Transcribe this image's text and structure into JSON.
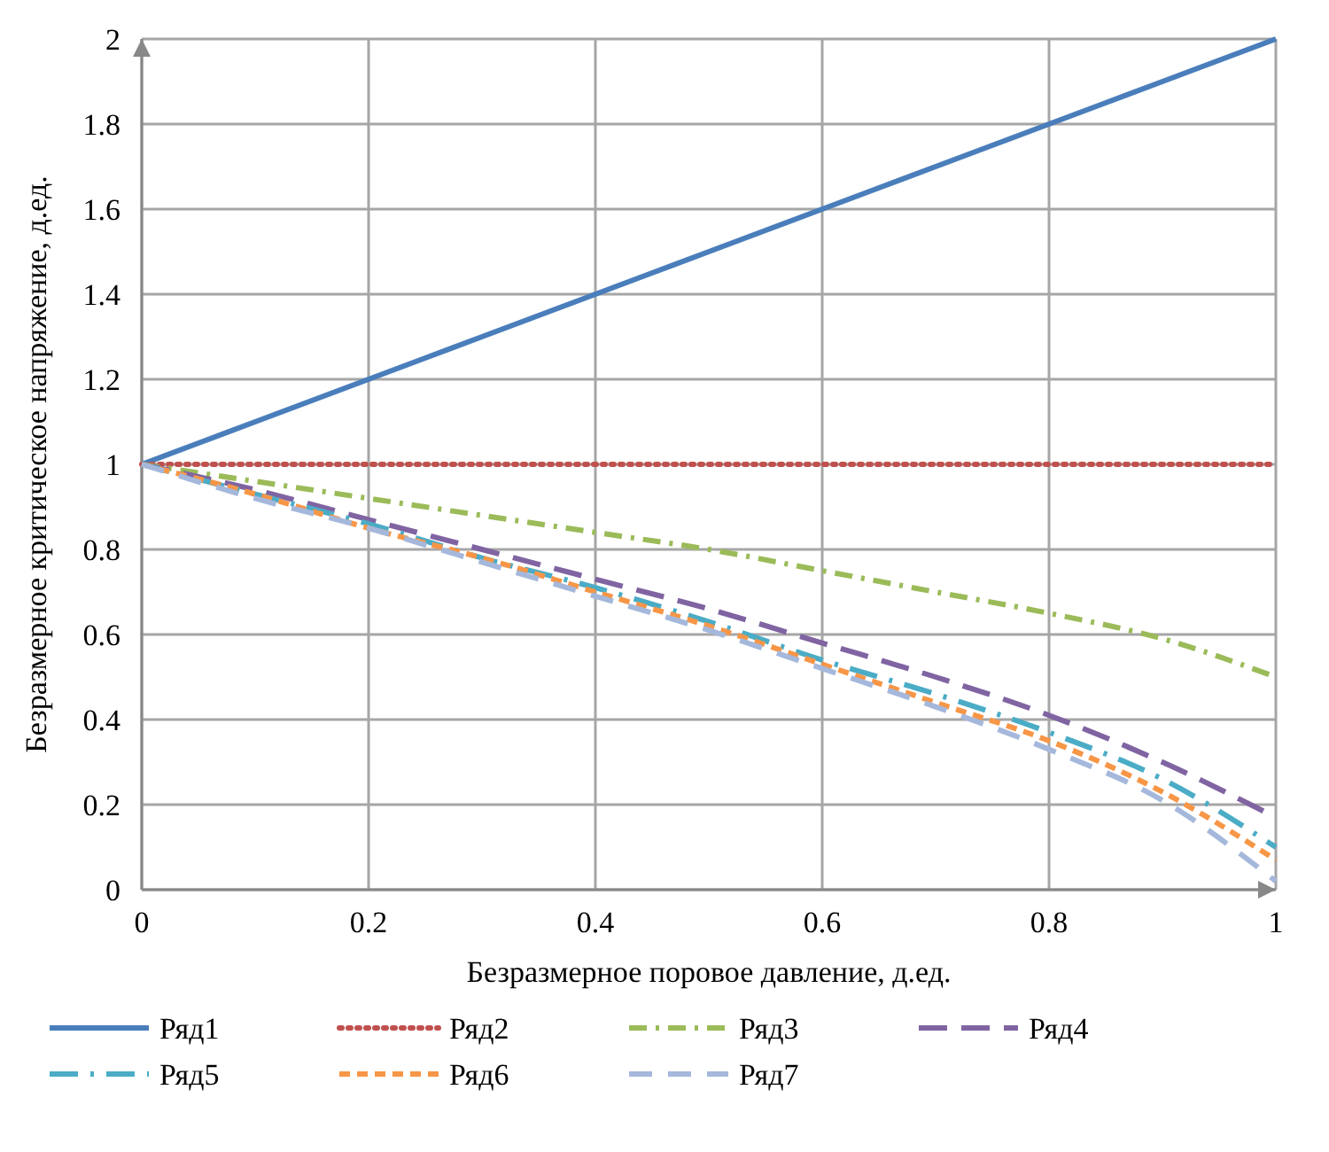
{
  "chart_data": {
    "type": "line",
    "xlabel": "Безразмерное поровое давление, д.ед.",
    "ylabel": "Безразмерное критическое напряжение, д.ед.",
    "x": [
      0,
      0.1,
      0.2,
      0.3,
      0.4,
      0.5,
      0.6,
      0.7,
      0.8,
      0.9,
      1
    ],
    "xlim": [
      0,
      1
    ],
    "xticks": [
      0,
      0.2,
      0.4,
      0.6,
      0.8,
      1
    ],
    "ylim": [
      0,
      2
    ],
    "yticks": [
      0,
      0.2,
      0.4,
      0.6,
      0.8,
      1,
      1.2,
      1.4,
      1.6,
      1.8,
      2
    ],
    "grid": true,
    "legend": "bottom",
    "marker": "none",
    "series": [
      {
        "name": "Ряд1",
        "color": "#4a7ebb",
        "line_style": "solid",
        "values": [
          1,
          1.1,
          1.2,
          1.3,
          1.4,
          1.5,
          1.6,
          1.7,
          1.8,
          1.9,
          2
        ]
      },
      {
        "name": "Ряд2",
        "color": "#c0504d",
        "line_style": "dotted",
        "values": [
          1,
          1,
          1,
          1,
          1,
          1,
          1,
          1,
          1,
          1,
          1
        ]
      },
      {
        "name": "Ряд3",
        "color": "#9bbb59",
        "line_style": "dashed",
        "values": [
          1,
          0.96,
          0.92,
          0.88,
          0.84,
          0.8,
          0.75,
          0.7,
          0.65,
          0.59,
          0.5
        ]
      },
      {
        "name": "Ряд4",
        "color": "#8064a2",
        "line_style": "dashed",
        "values": [
          1,
          0.94,
          0.87,
          0.8,
          0.73,
          0.66,
          0.58,
          0.5,
          0.41,
          0.3,
          0.17
        ]
      },
      {
        "name": "Ряд5",
        "color": "#4bacc6",
        "line_style": "dashed",
        "values": [
          1,
          0.93,
          0.86,
          0.78,
          0.71,
          0.63,
          0.54,
          0.46,
          0.37,
          0.26,
          0.1
        ]
      },
      {
        "name": "Ряд6",
        "color": "#f79646",
        "line_style": "dashed",
        "values": [
          1,
          0.93,
          0.85,
          0.78,
          0.7,
          0.62,
          0.53,
          0.44,
          0.35,
          0.23,
          0.07
        ]
      },
      {
        "name": "Ряд7",
        "color": "#a5b8dc",
        "line_style": "dashed",
        "values": [
          1,
          0.92,
          0.85,
          0.77,
          0.69,
          0.61,
          0.52,
          0.43,
          0.33,
          0.21,
          0.02
        ]
      }
    ]
  }
}
